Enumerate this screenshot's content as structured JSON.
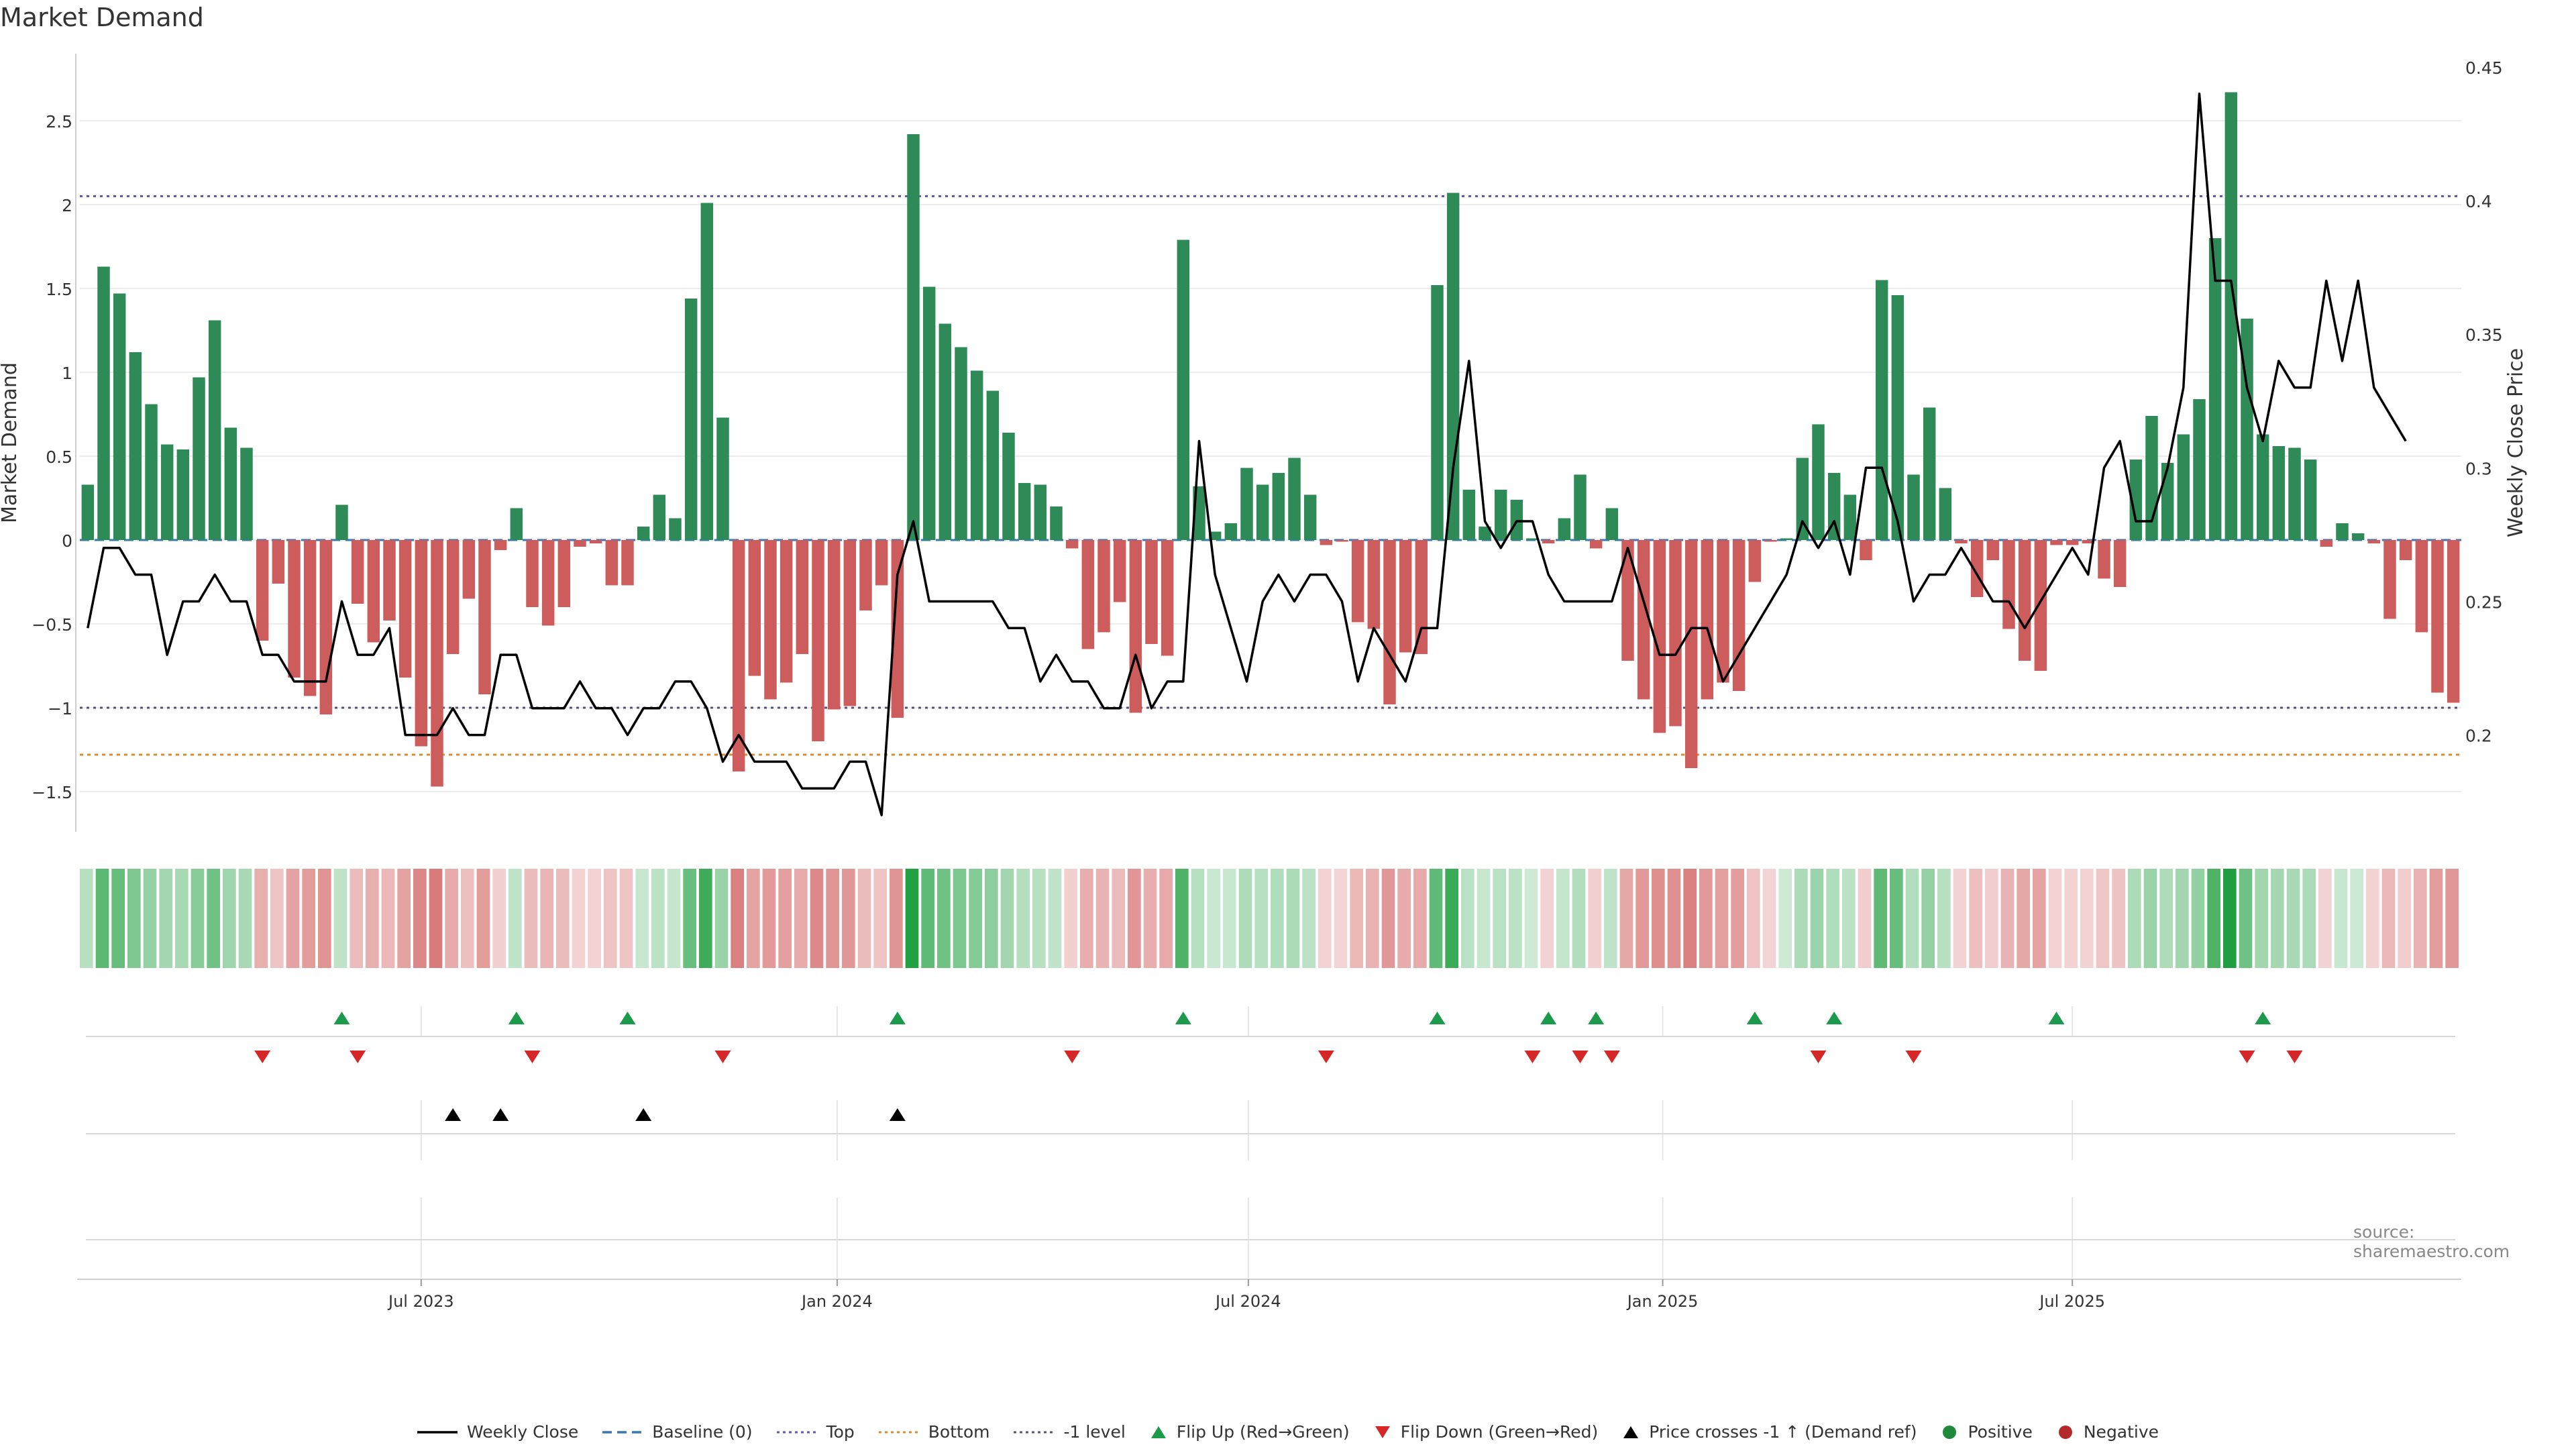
{
  "chart_data": {
    "type": "bar",
    "title": "Market Demand",
    "ylabel": "Market Demand",
    "y2label": "Weekly Close Price",
    "ylim": [
      -1.72,
      2.9
    ],
    "y2lim": [
      0.165,
      0.455
    ],
    "yticks": [
      "2.5",
      "2",
      "1.5",
      "1",
      "0.5",
      "0",
      "−0.5",
      "−1",
      "−1.5"
    ],
    "yticks_values": [
      2.5,
      2,
      1.5,
      1,
      0.5,
      0,
      -0.5,
      -1,
      -1.5
    ],
    "y2ticks": [
      "0.45",
      "0.4",
      "0.35",
      "0.3",
      "0.25",
      "0.2"
    ],
    "y2ticks_values": [
      0.45,
      0.4,
      0.35,
      0.3,
      0.25,
      0.2
    ],
    "xtick_labels": [
      "Jul 2023",
      "Jan 2024",
      "Jul 2024",
      "Jan 2025",
      "Jul 2025"
    ],
    "xtick_index": [
      21.5,
      47.7,
      73.6,
      99.7,
      125.5
    ],
    "reference_levels": {
      "top": 2.05,
      "bottom": -1.28,
      "minus_one": -1.0,
      "baseline": 0
    },
    "demand": [
      0.33,
      1.63,
      1.47,
      1.12,
      0.81,
      0.57,
      0.54,
      0.97,
      1.31,
      0.67,
      0.55,
      -0.6,
      -0.26,
      -0.82,
      -0.93,
      -1.04,
      0.21,
      -0.38,
      -0.61,
      -0.48,
      -0.82,
      -1.23,
      -1.47,
      -0.68,
      -0.35,
      -0.92,
      -0.06,
      0.19,
      -0.4,
      -0.51,
      -0.4,
      -0.04,
      -0.02,
      -0.27,
      -0.27,
      0.08,
      0.27,
      0.13,
      1.44,
      2.01,
      0.73,
      -1.38,
      -0.81,
      -0.95,
      -0.85,
      -0.68,
      -1.2,
      -1.01,
      -0.99,
      -0.42,
      -0.27,
      -1.06,
      2.42,
      1.51,
      1.29,
      1.15,
      1.01,
      0.89,
      0.64,
      0.34,
      0.33,
      0.2,
      -0.05,
      -0.65,
      -0.55,
      -0.37,
      -1.03,
      -0.62,
      -0.69,
      1.79,
      0.32,
      0.05,
      0.1,
      0.43,
      0.33,
      0.4,
      0.49,
      0.27,
      -0.03,
      -0.01,
      -0.49,
      -0.53,
      -0.98,
      -0.67,
      -0.68,
      1.52,
      2.07,
      0.3,
      0.08,
      0.3,
      0.24,
      0.01,
      -0.02,
      0.13,
      0.39,
      -0.05,
      0.19,
      -0.72,
      -0.95,
      -1.15,
      -1.11,
      -1.36,
      -0.95,
      -0.85,
      -0.9,
      -0.25,
      -0.01,
      0.01,
      0.49,
      0.69,
      0.4,
      0.27,
      -0.12,
      1.55,
      1.46,
      0.39,
      0.79,
      0.31,
      -0.02,
      -0.34,
      -0.12,
      -0.53,
      -0.72,
      -0.78,
      -0.03,
      -0.03,
      -0.02,
      -0.23,
      -0.28,
      0.48,
      0.74,
      0.46,
      0.63,
      0.84,
      1.8,
      2.67,
      1.32,
      0.63,
      0.56,
      0.55,
      0.48,
      -0.04,
      0.1,
      0.04,
      -0.02,
      -0.47,
      -0.12,
      -0.55,
      -0.91,
      -0.97
    ],
    "close": [
      0.24,
      0.27,
      0.27,
      0.26,
      0.26,
      0.23,
      0.25,
      0.25,
      0.26,
      0.25,
      0.25,
      0.23,
      0.23,
      0.22,
      0.22,
      0.22,
      0.25,
      0.23,
      0.23,
      0.24,
      0.2,
      0.2,
      0.2,
      0.21,
      0.2,
      0.2,
      0.23,
      0.23,
      0.21,
      0.21,
      0.21,
      0.22,
      0.21,
      0.21,
      0.2,
      0.21,
      0.21,
      0.22,
      0.22,
      0.21,
      0.19,
      0.2,
      0.19,
      0.19,
      0.19,
      0.18,
      0.18,
      0.18,
      0.19,
      0.19,
      0.17,
      0.26,
      0.28,
      0.25,
      0.25,
      0.25,
      0.25,
      0.25,
      0.24,
      0.24,
      0.22,
      0.23,
      0.22,
      0.22,
      0.21,
      0.21,
      0.23,
      0.21,
      0.22,
      0.22,
      0.31,
      0.26,
      0.24,
      0.22,
      0.25,
      0.26,
      0.25,
      0.26,
      0.26,
      0.25,
      0.22,
      0.24,
      0.23,
      0.22,
      0.24,
      0.24,
      0.3,
      0.34,
      0.28,
      0.27,
      0.28,
      0.28,
      0.26,
      0.25,
      0.25,
      0.25,
      0.25,
      0.27,
      0.25,
      0.23,
      0.23,
      0.24,
      0.24,
      0.22,
      0.23,
      0.24,
      0.25,
      0.26,
      0.28,
      0.27,
      0.28,
      0.26,
      0.3,
      0.3,
      0.28,
      0.25,
      0.26,
      0.26,
      0.27,
      0.26,
      0.25,
      0.25,
      0.24,
      0.25,
      0.26,
      0.27,
      0.26,
      0.3,
      0.31,
      0.28,
      0.28,
      0.3,
      0.33,
      0.44,
      0.37,
      0.37,
      0.33,
      0.31,
      0.34,
      0.33,
      0.33,
      0.37,
      0.34,
      0.37,
      0.33,
      0.32,
      0.31
    ],
    "flip_up_index": [
      16,
      27,
      34,
      51,
      69,
      85,
      92,
      95,
      105,
      110,
      124,
      137
    ],
    "flip_down_index": [
      11,
      17,
      28,
      40,
      62,
      78,
      91,
      94,
      96,
      109,
      115,
      136,
      139
    ],
    "price_cross_index": [
      23,
      26,
      35,
      51
    ],
    "legend": [
      {
        "label": "Weekly Close",
        "kind": "solid-line",
        "color": "#000000"
      },
      {
        "label": "Baseline (0)",
        "kind": "dash-line",
        "color": "#3a78b5"
      },
      {
        "label": "Top",
        "kind": "dot-line",
        "color": "#5b5bb5"
      },
      {
        "label": "Bottom",
        "kind": "dot-line",
        "color": "#e08a2e"
      },
      {
        "label": "-1 level",
        "kind": "dot-line",
        "color": "#555577"
      },
      {
        "label": "Flip Up (Red→Green)",
        "kind": "tri-up",
        "color": "#1a9a4a"
      },
      {
        "label": "Flip Down (Green→Red)",
        "kind": "tri-down",
        "color": "#d62728"
      },
      {
        "label": "Price crosses -1 ↑ (Demand ref)",
        "kind": "tri-up",
        "color": "#000000"
      },
      {
        "label": "Positive",
        "kind": "dot",
        "color": "#1f8a3c"
      },
      {
        "label": "Negative",
        "kind": "dot",
        "color": "#b22a2a"
      }
    ],
    "colors": {
      "positive": "#2e8b57",
      "negative": "#cd5c5c",
      "heat_pos": "#1e9e3e",
      "heat_neg": "#c83c3c"
    }
  },
  "source": "source: sharemaestro.com"
}
